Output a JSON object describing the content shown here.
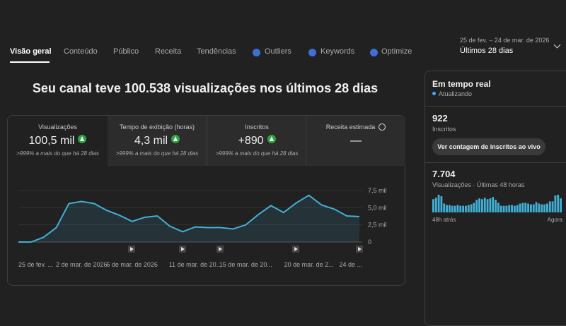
{
  "tabs": [
    "Visão geral",
    "Conteúdo",
    "Público",
    "Receita",
    "Tendências",
    "Outliers",
    "Keywords",
    "Optimize"
  ],
  "date_range": {
    "range": "25 de fev. – 24 de mar. de 2026",
    "period": "Últimos 28 dias"
  },
  "headline": "Seu canal teve 100.538 visualizações nos últimos 28 dias",
  "metrics": [
    {
      "label": "Visualizações",
      "value": "100,5 mil",
      "change": ">999% a mais do que há 28 dias"
    },
    {
      "label": "Tempo de exibição (horas)",
      "value": "4,3 mil",
      "change": ">999% a mais do que há 28 dias"
    },
    {
      "label": "Inscritos",
      "value": "+890",
      "change": ">999% a mais do que há 28 dias"
    },
    {
      "label": "Receita estimada",
      "value": "—"
    }
  ],
  "chart_data": {
    "type": "line",
    "categories": [
      "25 de fev. ...",
      null,
      null,
      null,
      null,
      "2 de mar. de 2026",
      null,
      null,
      null,
      "6 de mar. de 2026",
      null,
      null,
      null,
      null,
      "11 de mar. de 20...",
      null,
      null,
      null,
      "15 de mar. de 20...",
      null,
      null,
      null,
      null,
      "20 de mar. de 2...",
      null,
      null,
      null,
      "24 de ..."
    ],
    "series": [
      {
        "color": "#41b0d6",
        "values": [
          0,
          0,
          700,
          2100,
          5600,
          5900,
          5600,
          4600,
          3900,
          3000,
          3600,
          3800,
          2300,
          1500,
          2200,
          2100,
          2100,
          1900,
          2500,
          4000,
          5300,
          4300,
          5700,
          6800,
          5400,
          4800,
          3800,
          3700
        ]
      }
    ],
    "ylim": [
      0,
      7500
    ],
    "yticks": [
      0,
      {
        "value": 2500,
        "label": "2,5 mil"
      },
      {
        "value": 5000,
        "label": "5,0 mil"
      },
      {
        "value": 7500,
        "label": "7,5 mil"
      }
    ],
    "grid": true
  },
  "realtime": {
    "title": "Em tempo real",
    "status": "Atualizando",
    "subscribers": {
      "value": "922",
      "label": "Inscritos"
    },
    "button": "Ver contagem de inscritos ao vivo",
    "views": {
      "value": "7.704",
      "label": "Visualizações · Últimas 48 horas"
    },
    "chart_data": {
      "type": "bar",
      "color": "#41b0d6",
      "values": [
        216,
        240,
        288,
        264,
        144,
        120,
        120,
        108,
        108,
        120,
        108,
        108,
        108,
        120,
        132,
        156,
        204,
        228,
        216,
        240,
        216,
        228,
        252,
        204,
        156,
        108,
        108,
        108,
        120,
        120,
        108,
        120,
        144,
        156,
        156,
        144,
        132,
        132,
        168,
        144,
        132,
        132,
        144,
        180,
        180,
        276,
        288,
        228
      ],
      "x_labels": [
        "48h atrás",
        "Agora"
      ]
    }
  }
}
